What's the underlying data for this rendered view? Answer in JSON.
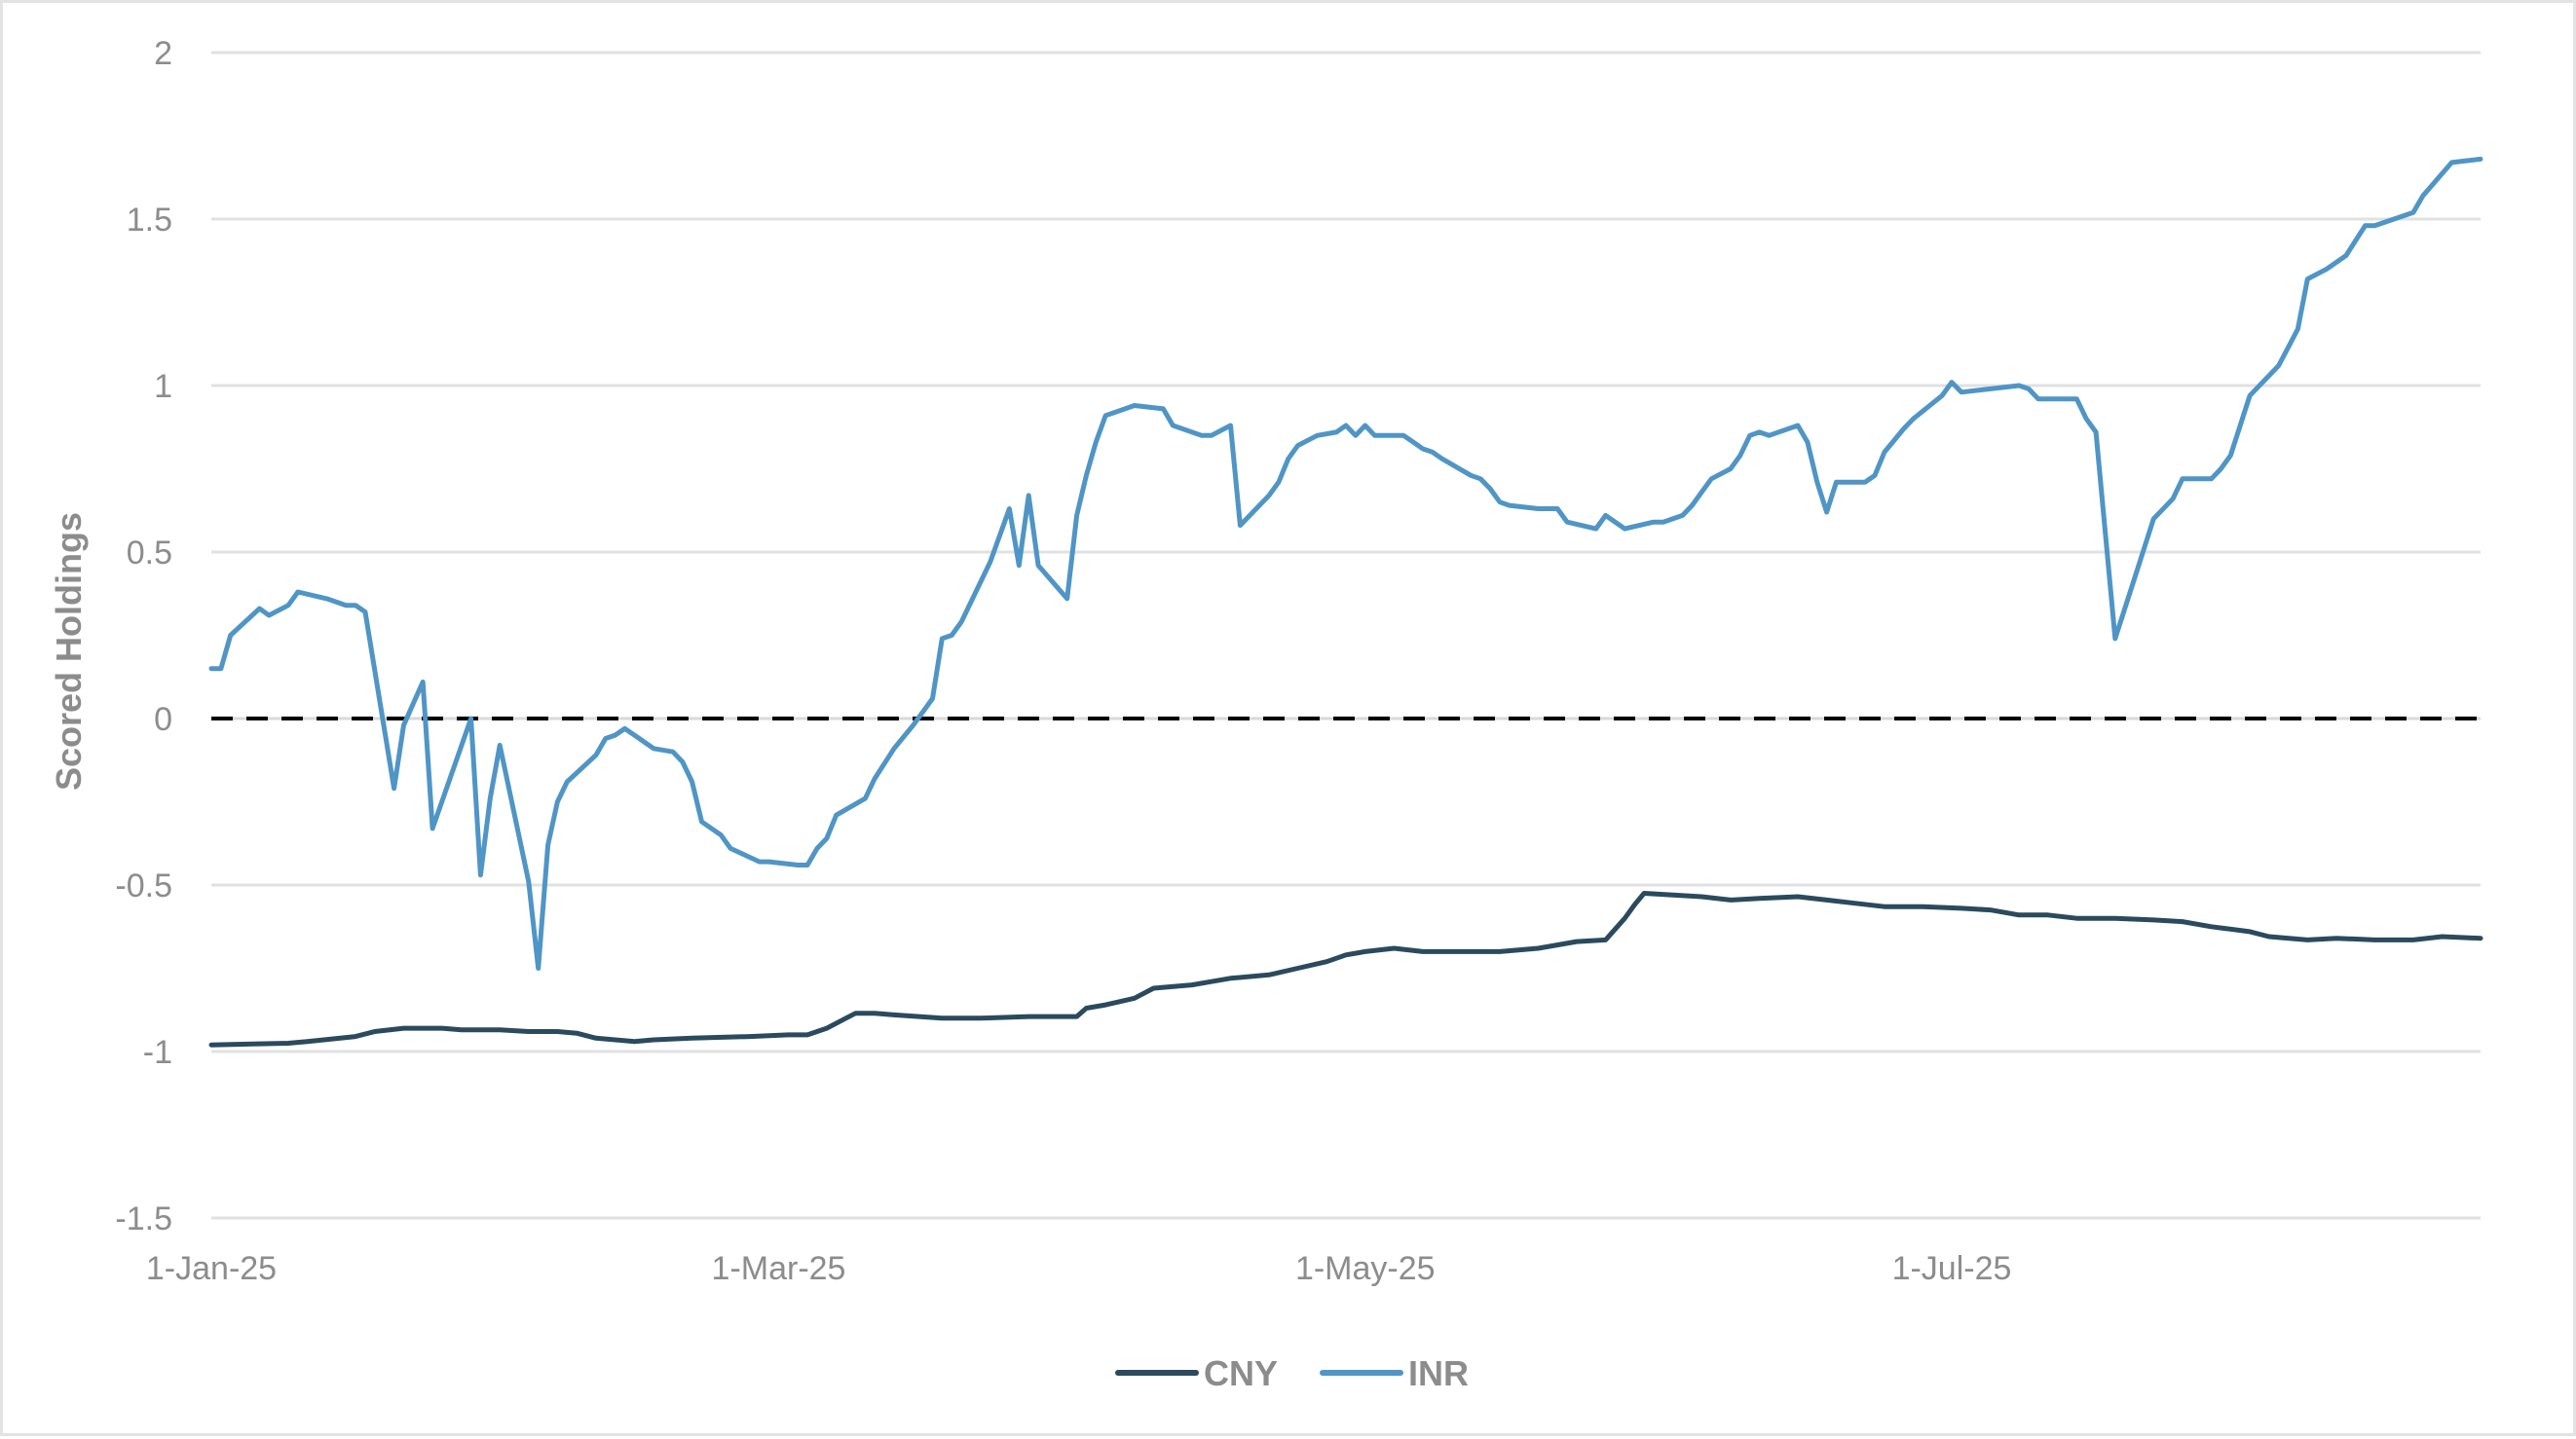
{
  "chart_data": {
    "type": "line",
    "title": "",
    "xlabel": "",
    "ylabel": "Scored Holdings",
    "xlim": [
      "2025-01-01",
      "2025-08-25"
    ],
    "ylim": [
      -1.5,
      2
    ],
    "yticks": [
      -1.5,
      -1,
      -0.5,
      0,
      0.5,
      1,
      1.5,
      2
    ],
    "ytick_labels": [
      "-1.5",
      "-1",
      "-0.5",
      "0",
      "0.5",
      "1",
      "1.5",
      "2"
    ],
    "xticks": [
      "2025-01-01",
      "2025-03-01",
      "2025-05-01",
      "2025-07-01"
    ],
    "xtick_labels": [
      "1-Jan-25",
      "1-Mar-25",
      "1-May-25",
      "1-Jul-25"
    ],
    "grid": "horizontal",
    "legend_position": "bottom",
    "reference_line": {
      "y": 0,
      "style": "dashed",
      "color": "#000000"
    },
    "series": [
      {
        "name": "CNY",
        "color": "#2b4a5e",
        "points": [
          [
            "2025-01-01",
            -0.98
          ],
          [
            "2025-01-09",
            -0.975
          ],
          [
            "2025-01-11",
            -0.97
          ],
          [
            "2025-01-16",
            -0.955
          ],
          [
            "2025-01-18",
            -0.94
          ],
          [
            "2025-01-21",
            -0.93
          ],
          [
            "2025-01-25",
            -0.93
          ],
          [
            "2025-01-27",
            -0.935
          ],
          [
            "2025-01-31",
            -0.935
          ],
          [
            "2025-02-03",
            -0.94
          ],
          [
            "2025-02-06",
            -0.94
          ],
          [
            "2025-02-08",
            -0.945
          ],
          [
            "2025-02-10",
            -0.96
          ],
          [
            "2025-02-14",
            -0.97
          ],
          [
            "2025-02-16",
            -0.965
          ],
          [
            "2025-02-20",
            -0.96
          ],
          [
            "2025-02-26",
            -0.955
          ],
          [
            "2025-03-02",
            -0.95
          ],
          [
            "2025-03-04",
            -0.95
          ],
          [
            "2025-03-06",
            -0.93
          ],
          [
            "2025-03-08",
            -0.9
          ],
          [
            "2025-03-09",
            -0.885
          ],
          [
            "2025-03-11",
            -0.885
          ],
          [
            "2025-03-13",
            -0.89
          ],
          [
            "2025-03-18",
            -0.9
          ],
          [
            "2025-03-22",
            -0.9
          ],
          [
            "2025-03-27",
            -0.895
          ],
          [
            "2025-04-01",
            -0.895
          ],
          [
            "2025-04-02",
            -0.87
          ],
          [
            "2025-04-04",
            -0.86
          ],
          [
            "2025-04-07",
            -0.84
          ],
          [
            "2025-04-09",
            -0.81
          ],
          [
            "2025-04-13",
            -0.8
          ],
          [
            "2025-04-15",
            -0.79
          ],
          [
            "2025-04-17",
            -0.78
          ],
          [
            "2025-04-21",
            -0.77
          ],
          [
            "2025-04-24",
            -0.75
          ],
          [
            "2025-04-27",
            -0.73
          ],
          [
            "2025-04-29",
            -0.71
          ],
          [
            "2025-05-01",
            -0.7
          ],
          [
            "2025-05-04",
            -0.69
          ],
          [
            "2025-05-07",
            -0.7
          ],
          [
            "2025-05-11",
            -0.7
          ],
          [
            "2025-05-15",
            -0.7
          ],
          [
            "2025-05-19",
            -0.69
          ],
          [
            "2025-05-23",
            -0.67
          ],
          [
            "2025-05-26",
            -0.665
          ],
          [
            "2025-05-28",
            -0.6
          ],
          [
            "2025-05-29",
            -0.56
          ],
          [
            "2025-05-30",
            -0.525
          ],
          [
            "2025-06-02",
            -0.53
          ],
          [
            "2025-06-05",
            -0.535
          ],
          [
            "2025-06-08",
            -0.545
          ],
          [
            "2025-06-11",
            -0.54
          ],
          [
            "2025-06-15",
            -0.535
          ],
          [
            "2025-06-18",
            -0.545
          ],
          [
            "2025-06-21",
            -0.555
          ],
          [
            "2025-06-24",
            -0.565
          ],
          [
            "2025-06-28",
            -0.565
          ],
          [
            "2025-07-02",
            -0.57
          ],
          [
            "2025-07-05",
            -0.575
          ],
          [
            "2025-07-08",
            -0.59
          ],
          [
            "2025-07-11",
            -0.59
          ],
          [
            "2025-07-14",
            -0.6
          ],
          [
            "2025-07-18",
            -0.6
          ],
          [
            "2025-07-22",
            -0.605
          ],
          [
            "2025-07-25",
            -0.61
          ],
          [
            "2025-07-28",
            -0.625
          ],
          [
            "2025-08-01",
            -0.64
          ],
          [
            "2025-08-03",
            -0.655
          ],
          [
            "2025-08-07",
            -0.665
          ],
          [
            "2025-08-10",
            -0.66
          ],
          [
            "2025-08-14",
            -0.665
          ],
          [
            "2025-08-18",
            -0.665
          ],
          [
            "2025-08-21",
            -0.655
          ],
          [
            "2025-08-25",
            -0.66
          ]
        ]
      },
      {
        "name": "INR",
        "color": "#4f95c6",
        "points": [
          [
            "2025-01-01",
            0.15
          ],
          [
            "2025-01-02",
            0.15
          ],
          [
            "2025-01-03",
            0.25
          ],
          [
            "2025-01-06",
            0.33
          ],
          [
            "2025-01-07",
            0.31
          ],
          [
            "2025-01-09",
            0.34
          ],
          [
            "2025-01-10",
            0.38
          ],
          [
            "2025-01-13",
            0.36
          ],
          [
            "2025-01-15",
            0.34
          ],
          [
            "2025-01-16",
            0.34
          ],
          [
            "2025-01-17",
            0.32
          ],
          [
            "2025-01-20",
            -0.21
          ],
          [
            "2025-01-21",
            -0.02
          ],
          [
            "2025-01-23",
            0.11
          ],
          [
            "2025-01-24",
            -0.33
          ],
          [
            "2025-01-28",
            0.0
          ],
          [
            "2025-01-29",
            -0.47
          ],
          [
            "2025-01-30",
            -0.24
          ],
          [
            "2025-01-31",
            -0.08
          ],
          [
            "2025-02-03",
            -0.49
          ],
          [
            "2025-02-04",
            -0.75
          ],
          [
            "2025-02-05",
            -0.38
          ],
          [
            "2025-02-06",
            -0.25
          ],
          [
            "2025-02-07",
            -0.19
          ],
          [
            "2025-02-10",
            -0.11
          ],
          [
            "2025-02-11",
            -0.06
          ],
          [
            "2025-02-12",
            -0.05
          ],
          [
            "2025-02-13",
            -0.03
          ],
          [
            "2025-02-14",
            -0.05
          ],
          [
            "2025-02-16",
            -0.09
          ],
          [
            "2025-02-18",
            -0.1
          ],
          [
            "2025-02-19",
            -0.13
          ],
          [
            "2025-02-20",
            -0.19
          ],
          [
            "2025-02-21",
            -0.31
          ],
          [
            "2025-02-23",
            -0.35
          ],
          [
            "2025-02-24",
            -0.39
          ],
          [
            "2025-02-27",
            -0.43
          ],
          [
            "2025-02-28",
            -0.43
          ],
          [
            "2025-03-03",
            -0.44
          ],
          [
            "2025-03-04",
            -0.44
          ],
          [
            "2025-03-05",
            -0.39
          ],
          [
            "2025-03-06",
            -0.36
          ],
          [
            "2025-03-07",
            -0.29
          ],
          [
            "2025-03-10",
            -0.24
          ],
          [
            "2025-03-11",
            -0.18
          ],
          [
            "2025-03-13",
            -0.09
          ],
          [
            "2025-03-15",
            -0.02
          ],
          [
            "2025-03-17",
            0.06
          ],
          [
            "2025-03-18",
            0.24
          ],
          [
            "2025-03-19",
            0.25
          ],
          [
            "2025-03-20",
            0.29
          ],
          [
            "2025-03-23",
            0.47
          ],
          [
            "2025-03-25",
            0.63
          ],
          [
            "2025-03-26",
            0.46
          ],
          [
            "2025-03-27",
            0.67
          ],
          [
            "2025-03-28",
            0.46
          ],
          [
            "2025-03-31",
            0.36
          ],
          [
            "2025-04-01",
            0.61
          ],
          [
            "2025-04-02",
            0.73
          ],
          [
            "2025-04-03",
            0.83
          ],
          [
            "2025-04-04",
            0.91
          ],
          [
            "2025-04-07",
            0.94
          ],
          [
            "2025-04-10",
            0.93
          ],
          [
            "2025-04-11",
            0.88
          ],
          [
            "2025-04-14",
            0.85
          ],
          [
            "2025-04-15",
            0.85
          ],
          [
            "2025-04-17",
            0.88
          ],
          [
            "2025-04-18",
            0.58
          ],
          [
            "2025-04-21",
            0.67
          ],
          [
            "2025-04-22",
            0.71
          ],
          [
            "2025-04-23",
            0.78
          ],
          [
            "2025-04-24",
            0.82
          ],
          [
            "2025-04-26",
            0.85
          ],
          [
            "2025-04-28",
            0.86
          ],
          [
            "2025-04-29",
            0.88
          ],
          [
            "2025-04-30",
            0.85
          ],
          [
            "2025-05-01",
            0.88
          ],
          [
            "2025-05-02",
            0.85
          ],
          [
            "2025-05-05",
            0.85
          ],
          [
            "2025-05-06",
            0.83
          ],
          [
            "2025-05-07",
            0.81
          ],
          [
            "2025-05-08",
            0.8
          ],
          [
            "2025-05-09",
            0.78
          ],
          [
            "2025-05-12",
            0.73
          ],
          [
            "2025-05-13",
            0.72
          ],
          [
            "2025-05-14",
            0.69
          ],
          [
            "2025-05-15",
            0.65
          ],
          [
            "2025-05-16",
            0.64
          ],
          [
            "2025-05-19",
            0.63
          ],
          [
            "2025-05-20",
            0.63
          ],
          [
            "2025-05-21",
            0.63
          ],
          [
            "2025-05-22",
            0.59
          ],
          [
            "2025-05-25",
            0.57
          ],
          [
            "2025-05-26",
            0.61
          ],
          [
            "2025-05-28",
            0.57
          ],
          [
            "2025-05-31",
            0.59
          ],
          [
            "2025-06-01",
            0.59
          ],
          [
            "2025-06-03",
            0.61
          ],
          [
            "2025-06-04",
            0.64
          ],
          [
            "2025-06-05",
            0.68
          ],
          [
            "2025-06-06",
            0.72
          ],
          [
            "2025-06-08",
            0.75
          ],
          [
            "2025-06-09",
            0.79
          ],
          [
            "2025-06-10",
            0.85
          ],
          [
            "2025-06-11",
            0.86
          ],
          [
            "2025-06-12",
            0.85
          ],
          [
            "2025-06-15",
            0.88
          ],
          [
            "2025-06-16",
            0.83
          ],
          [
            "2025-06-17",
            0.71
          ],
          [
            "2025-06-18",
            0.62
          ],
          [
            "2025-06-19",
            0.71
          ],
          [
            "2025-06-22",
            0.71
          ],
          [
            "2025-06-23",
            0.73
          ],
          [
            "2025-06-24",
            0.8
          ],
          [
            "2025-06-26",
            0.87
          ],
          [
            "2025-06-27",
            0.9
          ],
          [
            "2025-06-30",
            0.97
          ],
          [
            "2025-07-01",
            1.01
          ],
          [
            "2025-07-02",
            0.98
          ],
          [
            "2025-07-08",
            1.0
          ],
          [
            "2025-07-09",
            0.99
          ],
          [
            "2025-07-10",
            0.96
          ],
          [
            "2025-07-14",
            0.96
          ],
          [
            "2025-07-15",
            0.9
          ],
          [
            "2025-07-16",
            0.86
          ],
          [
            "2025-07-18",
            0.24
          ],
          [
            "2025-07-20",
            0.42
          ],
          [
            "2025-07-22",
            0.6
          ],
          [
            "2025-07-24",
            0.66
          ],
          [
            "2025-07-25",
            0.72
          ],
          [
            "2025-07-28",
            0.72
          ],
          [
            "2025-07-29",
            0.75
          ],
          [
            "2025-07-30",
            0.79
          ],
          [
            "2025-08-01",
            0.97
          ],
          [
            "2025-08-04",
            1.06
          ],
          [
            "2025-08-06",
            1.17
          ],
          [
            "2025-08-07",
            1.32
          ],
          [
            "2025-08-09",
            1.35
          ],
          [
            "2025-08-11",
            1.39
          ],
          [
            "2025-08-13",
            1.48
          ],
          [
            "2025-08-14",
            1.48
          ],
          [
            "2025-08-18",
            1.52
          ],
          [
            "2025-08-19",
            1.57
          ],
          [
            "2025-08-22",
            1.67
          ],
          [
            "2025-08-25",
            1.68
          ]
        ]
      }
    ]
  }
}
